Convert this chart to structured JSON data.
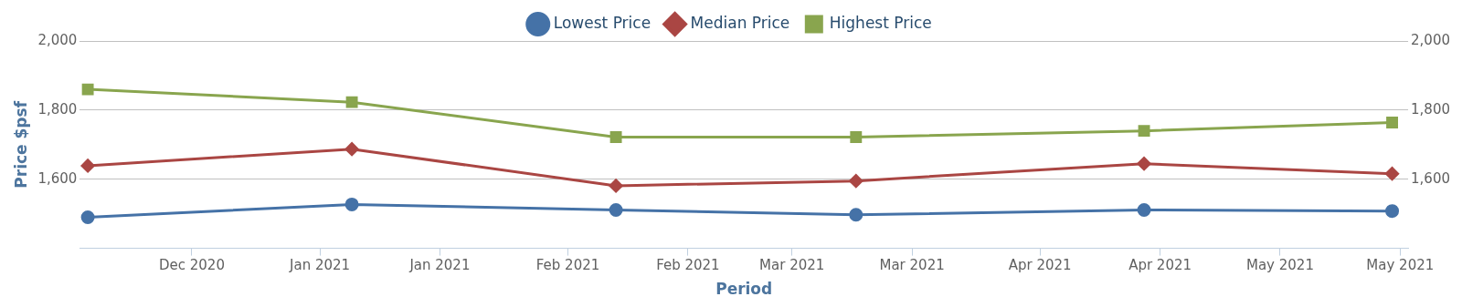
{
  "chart_data": {
    "type": "line",
    "xlabel": "Period",
    "ylabel": "Price $psf",
    "x": [
      "2020-12-03",
      "2021-01-05",
      "2021-02-07",
      "2021-03-09",
      "2021-04-14",
      "2021-05-15"
    ],
    "series": [
      {
        "name": "Lowest Price",
        "color": "#4572a7",
        "marker": "circle",
        "values": [
          1490,
          1527,
          1511,
          1497,
          1511,
          1508
        ]
      },
      {
        "name": "Median Price",
        "color": "#aa4643",
        "marker": "diamond",
        "values": [
          1639,
          1687,
          1581,
          1595,
          1645,
          1616
        ]
      },
      {
        "name": "Highest Price",
        "color": "#89a54e",
        "marker": "square",
        "values": [
          1860,
          1823,
          1722,
          1722,
          1740,
          1764
        ]
      }
    ],
    "xlim": [
      "2020-12-02",
      "2021-05-17"
    ],
    "xticks": [
      {
        "value": "2020-12-16",
        "label": "Dec 2020"
      },
      {
        "value": "2021-01-01",
        "label": "Jan 2021"
      },
      {
        "value": "2021-01-16",
        "label": "Jan 2021"
      },
      {
        "value": "2021-02-01",
        "label": "Feb 2021"
      },
      {
        "value": "2021-02-16",
        "label": "Feb 2021"
      },
      {
        "value": "2021-03-01",
        "label": "Mar 2021"
      },
      {
        "value": "2021-03-16",
        "label": "Mar 2021"
      },
      {
        "value": "2021-04-01",
        "label": "Apr 2021"
      },
      {
        "value": "2021-04-16",
        "label": "Apr 2021"
      },
      {
        "value": "2021-05-01",
        "label": "May 2021"
      },
      {
        "value": "2021-05-16",
        "label": "May 2021"
      }
    ],
    "ylim": [
      1400,
      2000
    ],
    "yticks": [
      {
        "value": 1400,
        "label": null
      },
      {
        "value": 1600,
        "label": "1,600"
      },
      {
        "value": 1800,
        "label": "1,800"
      },
      {
        "value": 2000,
        "label": "2,000"
      }
    ],
    "y2lim": [
      1400,
      2000
    ],
    "y2ticks": [
      {
        "value": 1400,
        "label": null
      },
      {
        "value": 1600,
        "label": "1,600"
      },
      {
        "value": 1800,
        "label": "1,800"
      },
      {
        "value": 2000,
        "label": "2,000"
      }
    ],
    "grid": "y",
    "legend": "top",
    "line_style": "solid"
  }
}
